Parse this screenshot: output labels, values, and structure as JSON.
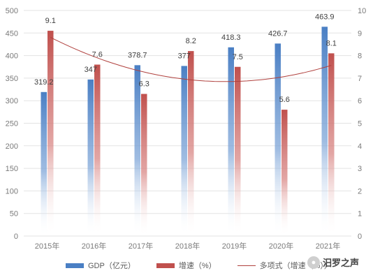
{
  "chart_data": {
    "type": "bar",
    "categories": [
      "2015年",
      "2016年",
      "2017年",
      "2018年",
      "2019年",
      "2020年",
      "2021年"
    ],
    "series": [
      {
        "name": "GDP（亿元）",
        "axis": "left",
        "color": "#4a7fc4",
        "values": [
          319.2,
          347,
          378.7,
          377,
          418.3,
          426.7,
          463.9
        ],
        "labels": [
          "319.2",
          "347",
          "378.7",
          "377",
          "418.3",
          "426.7",
          "463.9"
        ]
      },
      {
        "name": "增速（%）",
        "axis": "right",
        "color": "#c0504d",
        "values": [
          9.1,
          7.6,
          6.3,
          8.2,
          7.5,
          5.6,
          8.1
        ],
        "labels": [
          "9.1",
          "7.6",
          "6.3",
          "8.2",
          "7.5",
          "5.6",
          "8.1"
        ]
      }
    ],
    "trendline": {
      "name": "多项式（增速（%））",
      "type": "polynomial",
      "of": "增速（%）",
      "color": "#b0403d"
    },
    "y_left": {
      "min": 0,
      "max": 500,
      "step": 50,
      "ticks": [
        "0",
        "50",
        "100",
        "150",
        "200",
        "250",
        "300",
        "350",
        "400",
        "450",
        "500"
      ]
    },
    "y_right": {
      "min": 0,
      "max": 10,
      "step": 1,
      "ticks": [
        "0",
        "1",
        "2",
        "3",
        "4",
        "5",
        "6",
        "7",
        "8",
        "9",
        "10"
      ]
    },
    "title": "",
    "xlabel": "",
    "ylabel": "",
    "grid": true,
    "legend": "bottom"
  },
  "legend": {
    "gdp": "GDP（亿元）",
    "rate": "增速（%）",
    "trend": "多项式（增速（%））"
  },
  "watermark": {
    "text": "汨罗之声",
    "icon": "wechat-icon"
  }
}
